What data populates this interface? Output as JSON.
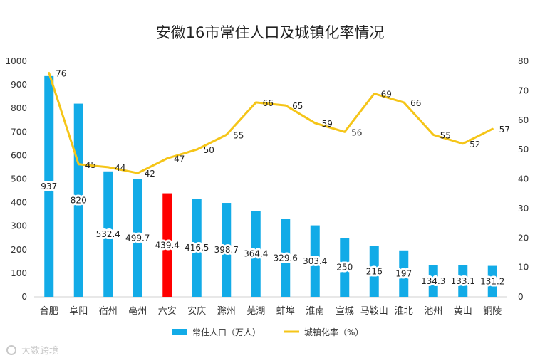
{
  "chart_data": {
    "type": "bar",
    "title": "安徽16市常住人口及城镇化率情况",
    "categories": [
      "合肥",
      "阜阳",
      "宿州",
      "亳州",
      "六安",
      "安庆",
      "滁州",
      "芜湖",
      "蚌埠",
      "淮南",
      "宣城",
      "马鞍山",
      "淮北",
      "池州",
      "黄山",
      "铜陵"
    ],
    "series": [
      {
        "name": "常住人口（万人）",
        "type": "bar",
        "axis": "left",
        "color": "#12ABE7",
        "highlight_index": 4,
        "highlight_color": "#FF0000",
        "values": [
          937,
          820,
          532.4,
          499.7,
          439.4,
          416.5,
          398.7,
          364.4,
          329.6,
          303.4,
          250,
          216,
          197,
          134.3,
          133.1,
          131.2
        ],
        "labels": [
          "937",
          "820",
          "532.4",
          "499.7",
          "439.4",
          "416.5",
          "398.7",
          "364.4",
          "329.6",
          "303.4",
          "250",
          "216",
          "197",
          "134.3",
          "133.1",
          "131.2"
        ]
      },
      {
        "name": "城镇化率（%）",
        "type": "line",
        "axis": "right",
        "color": "#F5C518",
        "values": [
          76,
          45,
          44,
          42,
          47,
          50,
          55,
          66,
          65,
          59,
          56,
          69,
          66,
          55,
          52,
          57
        ],
        "labels": [
          "76",
          "45",
          "44",
          "42",
          "47",
          "50",
          "55",
          "66",
          "65",
          "59",
          "56",
          "69",
          "66",
          "55",
          "52",
          "57"
        ]
      }
    ],
    "y_left": {
      "min": 0,
      "max": 1000,
      "step": 100,
      "ticks": [
        "0",
        "100",
        "200",
        "300",
        "400",
        "500",
        "600",
        "700",
        "800",
        "900",
        "1000"
      ]
    },
    "y_right": {
      "min": 0,
      "max": 80,
      "step": 10,
      "ticks": [
        "0",
        "10",
        "20",
        "30",
        "40",
        "50",
        "60",
        "70",
        "80"
      ]
    },
    "legend": {
      "position": "bottom",
      "items": [
        "常住人口（万人）",
        "城镇化率（%）"
      ]
    },
    "watermark": "大数跨境"
  }
}
